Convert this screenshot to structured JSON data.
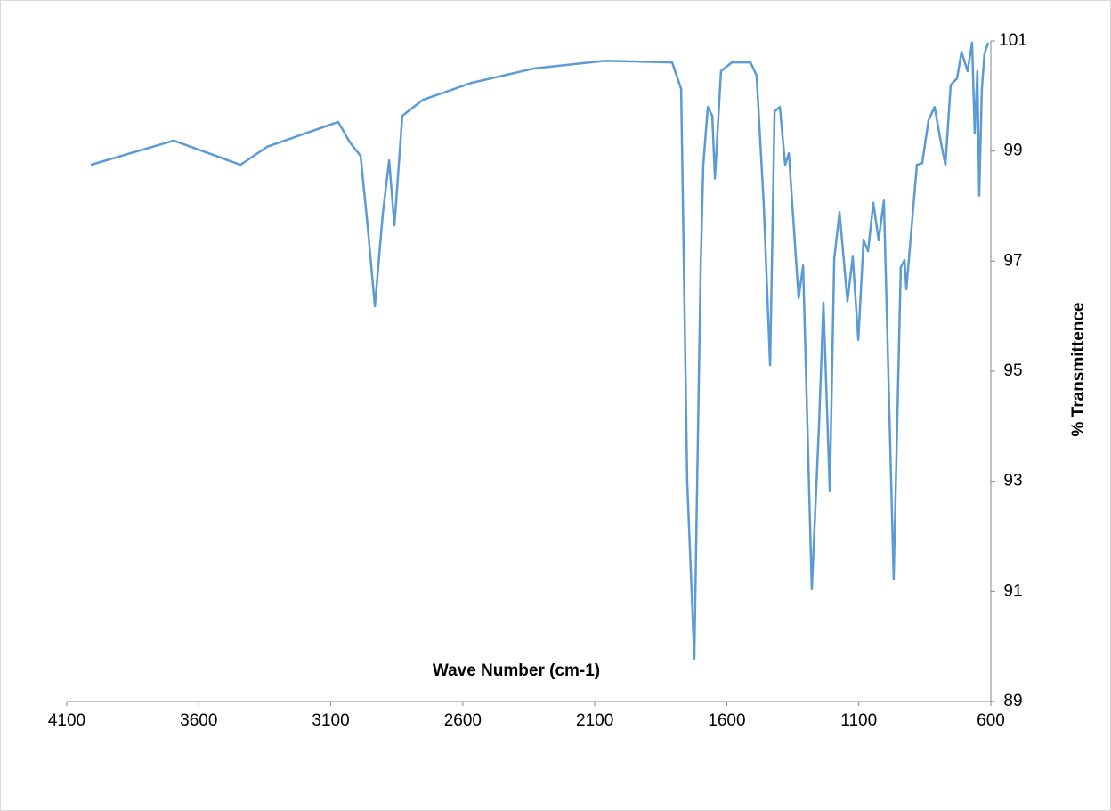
{
  "chart_data": {
    "type": "line",
    "x_label": "Wave Number (cm-1)",
    "y_label": "% Transmittence",
    "xlim": [
      4100,
      600
    ],
    "xticks": [
      4100,
      3600,
      3100,
      2600,
      2100,
      1600,
      1100,
      600
    ],
    "ylim": [
      89,
      101
    ],
    "yticks": [
      89,
      91,
      93,
      95,
      97,
      99,
      101
    ],
    "y_axis_side": "right",
    "grid": false,
    "series": [
      {
        "color": "#5b9bd5",
        "x": [
          4009,
          3695,
          3442,
          3340,
          3072,
          3028,
          2987,
          2960,
          2933,
          2903,
          2879,
          2859,
          2829,
          2751,
          2566,
          2330,
          2060,
          1807,
          1773,
          1750,
          1723,
          1699,
          1689,
          1672,
          1655,
          1645,
          1622,
          1581,
          1510,
          1487,
          1460,
          1436,
          1419,
          1399,
          1379,
          1365,
          1328,
          1311,
          1278,
          1251,
          1234,
          1210,
          1193,
          1173,
          1143,
          1123,
          1102,
          1082,
          1065,
          1045,
          1025,
          1005,
          968,
          941,
          927,
          920,
          880,
          860,
          836,
          813,
          786,
          772,
          752,
          728,
          711,
          688,
          671,
          661,
          651,
          644,
          634,
          624,
          610
        ],
        "values": [
          98.75,
          99.19,
          98.75,
          99.08,
          99.53,
          99.16,
          98.91,
          97.62,
          96.18,
          97.86,
          98.83,
          97.65,
          99.64,
          99.93,
          100.24,
          100.5,
          100.64,
          100.61,
          100.13,
          93.0,
          89.78,
          96.89,
          98.75,
          99.8,
          99.64,
          98.5,
          100.45,
          100.61,
          100.61,
          100.37,
          98.02,
          95.11,
          99.72,
          99.8,
          98.75,
          98.96,
          96.33,
          96.92,
          91.04,
          93.98,
          96.25,
          92.82,
          97.05,
          97.89,
          96.27,
          97.08,
          95.57,
          97.38,
          97.18,
          98.06,
          97.38,
          98.1,
          91.23,
          96.89,
          97.02,
          96.49,
          98.75,
          98.78,
          99.56,
          99.8,
          99.08,
          98.75,
          100.2,
          100.32,
          100.8,
          100.45,
          100.97,
          99.32,
          100.45,
          98.19,
          100.13,
          100.77,
          100.97
        ]
      }
    ]
  }
}
